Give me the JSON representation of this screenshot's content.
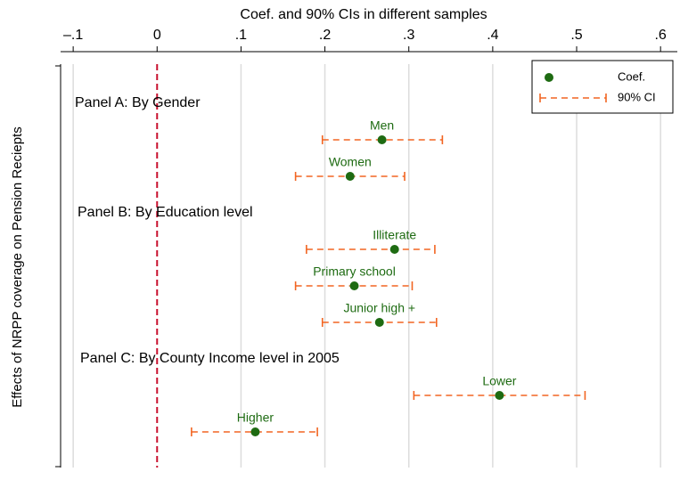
{
  "chart_data": {
    "type": "coefplot",
    "title": "Coef. and 90% CIs in different samples",
    "y_label": "Effects of NRPP coverage on Pension Reciepts",
    "xlim": [
      -0.115,
      0.62
    ],
    "xticks": [
      {
        "value": -0.1,
        "label": "–.1"
      },
      0,
      {
        "value": 0.1,
        "label": ".1"
      },
      {
        "value": 0.2,
        "label": ".2"
      },
      {
        "value": 0.3,
        "label": ".3"
      },
      {
        "value": 0.4,
        "label": ".4"
      },
      {
        "value": 0.5,
        "label": ".5"
      },
      {
        "value": 0.6,
        "label": ".6"
      }
    ],
    "grid": true,
    "xline": 0,
    "legend_position": "top-right",
    "series": [
      {
        "name": "Coef.",
        "color": "#1e6b12"
      },
      {
        "name": "90% CI",
        "color": "#f26522"
      }
    ],
    "panels": [
      {
        "label": "Panel A: By Gender",
        "items": [
          {
            "name": "Men",
            "coef": 0.268,
            "ci": [
              0.197,
              0.34
            ]
          },
          {
            "name": "Women",
            "coef": 0.23,
            "ci": [
              0.165,
              0.295
            ]
          }
        ]
      },
      {
        "label": "Panel B: By Education level",
        "items": [
          {
            "name": "Illiterate",
            "coef": 0.283,
            "ci": [
              0.178,
              0.331
            ]
          },
          {
            "name": "Primary school",
            "coef": 0.235,
            "ci": [
              0.165,
              0.304
            ]
          },
          {
            "name": "Junior high +",
            "coef": 0.265,
            "ci": [
              0.197,
              0.333
            ]
          }
        ]
      },
      {
        "label": "Panel C: By County Income level in 2005",
        "items": [
          {
            "name": "Lower",
            "coef": 0.408,
            "ci": [
              0.306,
              0.51
            ]
          },
          {
            "name": "Higher",
            "coef": 0.117,
            "ci": [
              0.041,
              0.191
            ]
          }
        ]
      }
    ]
  }
}
